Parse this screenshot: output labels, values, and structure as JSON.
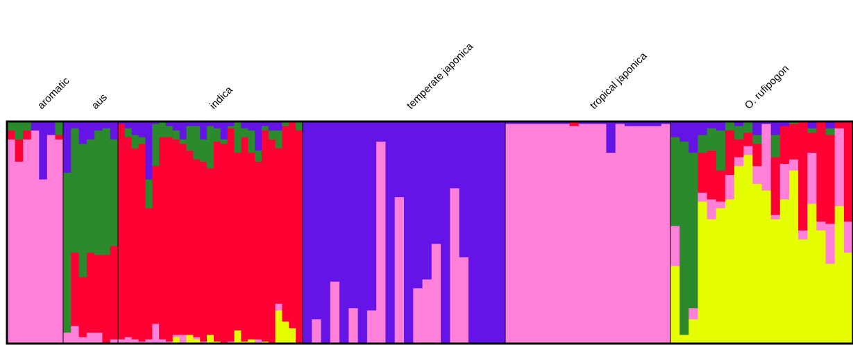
{
  "chart_data": {
    "type": "stacked-bar",
    "title": "",
    "xlabel": "",
    "ylabel": "",
    "ylim": [
      0,
      1
    ],
    "cluster_colors": {
      "K1": "#ff80d8",
      "K2": "#2b8a2b",
      "K3": "#ff0035",
      "K4": "#6414e6",
      "K5": "#e6ff00"
    },
    "stack_order": [
      "K5",
      "K1",
      "K3",
      "K2",
      "K4"
    ],
    "groups": [
      {
        "label": "aromatic",
        "individuals": [
          {
            "K1": 0.92,
            "K2": 0.04,
            "K3": 0.04,
            "K4": 0.0,
            "K5": 0.0
          },
          {
            "K1": 0.82,
            "K2": 0.08,
            "K3": 0.1,
            "K4": 0.0,
            "K5": 0.0
          },
          {
            "K1": 0.92,
            "K2": 0.04,
            "K3": 0.04,
            "K4": 0.0,
            "K5": 0.0
          },
          {
            "K1": 0.96,
            "K2": 0.0,
            "K3": 0.0,
            "K4": 0.04,
            "K5": 0.0
          },
          {
            "K1": 0.74,
            "K2": 0.0,
            "K3": 0.0,
            "K4": 0.26,
            "K5": 0.0
          },
          {
            "K1": 0.94,
            "K2": 0.0,
            "K3": 0.0,
            "K4": 0.06,
            "K5": 0.0
          },
          {
            "K1": 0.92,
            "K2": 0.06,
            "K3": 0.02,
            "K4": 0.0,
            "K5": 0.0
          }
        ]
      },
      {
        "label": "aus",
        "individuals": [
          {
            "K1": 0.05,
            "K2": 0.72,
            "K3": 0.0,
            "K4": 0.23,
            "K5": 0.0
          },
          {
            "K1": 0.08,
            "K2": 0.56,
            "K3": 0.33,
            "K4": 0.03,
            "K5": 0.0
          },
          {
            "K1": 0.03,
            "K2": 0.6,
            "K3": 0.27,
            "K4": 0.1,
            "K5": 0.0
          },
          {
            "K1": 0.05,
            "K2": 0.51,
            "K3": 0.36,
            "K4": 0.08,
            "K5": 0.0
          },
          {
            "K1": 0.05,
            "K2": 0.56,
            "K3": 0.35,
            "K4": 0.04,
            "K5": 0.0
          },
          {
            "K1": 0.0,
            "K2": 0.57,
            "K3": 0.4,
            "K4": 0.03,
            "K5": 0.0
          },
          {
            "K1": 0.02,
            "K2": 0.48,
            "K3": 0.42,
            "K4": 0.08,
            "K5": 0.0
          }
        ]
      },
      {
        "label": "indica",
        "individuals": [
          {
            "K1": 0.02,
            "K2": 0.0,
            "K3": 0.97,
            "K4": 0.01,
            "K5": 0.0
          },
          {
            "K1": 0.03,
            "K2": 0.04,
            "K3": 0.9,
            "K4": 0.03,
            "K5": 0.0
          },
          {
            "K1": 0.02,
            "K2": 0.06,
            "K3": 0.86,
            "K4": 0.06,
            "K5": 0.0
          },
          {
            "K1": 0.01,
            "K2": 0.03,
            "K3": 0.89,
            "K4": 0.07,
            "K5": 0.0
          },
          {
            "K1": 0.02,
            "K2": 0.13,
            "K3": 0.59,
            "K4": 0.26,
            "K5": 0.0
          },
          {
            "K1": 0.09,
            "K2": 0.19,
            "K3": 0.71,
            "K4": 0.01,
            "K5": 0.0
          },
          {
            "K1": 0.02,
            "K2": 0.07,
            "K3": 0.91,
            "K4": 0.0,
            "K5": 0.0
          },
          {
            "K1": 0.01,
            "K2": 0.05,
            "K3": 0.92,
            "K4": 0.02,
            "K5": 0.0
          },
          {
            "K1": 0.01,
            "K2": 0.04,
            "K3": 0.88,
            "K4": 0.04,
            "K5": 0.03
          },
          {
            "K1": 0.04,
            "K2": 0.02,
            "K3": 0.86,
            "K4": 0.08,
            "K5": 0.0
          },
          {
            "K1": 0.0,
            "K2": 0.11,
            "K3": 0.83,
            "K4": 0.02,
            "K5": 0.04
          },
          {
            "K1": 0.01,
            "K2": 0.15,
            "K3": 0.8,
            "K4": 0.02,
            "K5": 0.02
          },
          {
            "K1": 0.01,
            "K2": 0.1,
            "K3": 0.81,
            "K4": 0.08,
            "K5": 0.0
          },
          {
            "K1": 0.0,
            "K2": 0.19,
            "K3": 0.75,
            "K4": 0.02,
            "K5": 0.04
          },
          {
            "K1": 0.0,
            "K2": 0.06,
            "K3": 0.9,
            "K4": 0.03,
            "K5": 0.01
          },
          {
            "K1": 0.0,
            "K2": 0.02,
            "K3": 0.9,
            "K4": 0.08,
            "K5": 0.0
          },
          {
            "K1": 0.01,
            "K2": 0.01,
            "K3": 0.96,
            "K4": 0.02,
            "K5": 0.0
          },
          {
            "K1": 0.0,
            "K2": 0.14,
            "K3": 0.8,
            "K4": 0.0,
            "K5": 0.06
          },
          {
            "K1": 0.0,
            "K2": 0.04,
            "K3": 0.92,
            "K4": 0.03,
            "K5": 0.01
          },
          {
            "K1": 0.0,
            "K2": 0.1,
            "K3": 0.84,
            "K4": 0.04,
            "K5": 0.02
          },
          {
            "K1": 0.02,
            "K2": 0.05,
            "K3": 0.8,
            "K4": 0.13,
            "K5": 0.0
          },
          {
            "K1": 0.0,
            "K2": 0.02,
            "K3": 0.95,
            "K4": 0.02,
            "K5": 0.01
          },
          {
            "K1": 0.0,
            "K2": 0.04,
            "K3": 0.92,
            "K4": 0.04,
            "K5": 0.0
          },
          {
            "K1": 0.03,
            "K2": 0.08,
            "K3": 0.7,
            "K4": 0.04,
            "K5": 0.15
          },
          {
            "K1": 0.0,
            "K2": 0.02,
            "K3": 0.88,
            "K4": 0.0,
            "K5": 0.1
          },
          {
            "K1": 0.0,
            "K2": 0.0,
            "K3": 0.93,
            "K4": 0.0,
            "K5": 0.07
          },
          {
            "K1": 0.0,
            "K2": 0.04,
            "K3": 0.96,
            "K4": 0.0,
            "K5": 0.0
          }
        ]
      },
      {
        "label": "temperate japonica",
        "individuals": [
          {
            "K1": 0.0,
            "K2": 0.0,
            "K3": 0.0,
            "K4": 1.0,
            "K5": 0.0
          },
          {
            "K1": 0.11,
            "K2": 0.0,
            "K3": 0.0,
            "K4": 0.89,
            "K5": 0.0
          },
          {
            "K1": 0.0,
            "K2": 0.0,
            "K3": 0.0,
            "K4": 1.0,
            "K5": 0.0
          },
          {
            "K1": 0.28,
            "K2": 0.0,
            "K3": 0.0,
            "K4": 0.72,
            "K5": 0.0
          },
          {
            "K1": 0.0,
            "K2": 0.0,
            "K3": 0.0,
            "K4": 1.0,
            "K5": 0.0
          },
          {
            "K1": 0.16,
            "K2": 0.0,
            "K3": 0.0,
            "K4": 0.84,
            "K5": 0.0
          },
          {
            "K1": 0.0,
            "K2": 0.0,
            "K3": 0.0,
            "K4": 1.0,
            "K5": 0.0
          },
          {
            "K1": 0.15,
            "K2": 0.0,
            "K3": 0.0,
            "K4": 0.85,
            "K5": 0.0
          },
          {
            "K1": 0.91,
            "K2": 0.0,
            "K3": 0.0,
            "K4": 0.09,
            "K5": 0.0
          },
          {
            "K1": 0.0,
            "K2": 0.0,
            "K3": 0.0,
            "K4": 1.0,
            "K5": 0.0
          },
          {
            "K1": 0.66,
            "K2": 0.0,
            "K3": 0.0,
            "K4": 0.34,
            "K5": 0.0
          },
          {
            "K1": 0.0,
            "K2": 0.0,
            "K3": 0.0,
            "K4": 1.0,
            "K5": 0.0
          },
          {
            "K1": 0.25,
            "K2": 0.0,
            "K3": 0.0,
            "K4": 0.75,
            "K5": 0.0
          },
          {
            "K1": 0.29,
            "K2": 0.0,
            "K3": 0.0,
            "K4": 0.71,
            "K5": 0.0
          },
          {
            "K1": 0.45,
            "K2": 0.0,
            "K3": 0.0,
            "K4": 0.55,
            "K5": 0.0
          },
          {
            "K1": 0.0,
            "K2": 0.0,
            "K3": 0.0,
            "K4": 1.0,
            "K5": 0.0
          },
          {
            "K1": 0.7,
            "K2": 0.0,
            "K3": 0.0,
            "K4": 0.3,
            "K5": 0.0
          },
          {
            "K1": 0.39,
            "K2": 0.0,
            "K3": 0.0,
            "K4": 0.61,
            "K5": 0.0
          },
          {
            "K1": 0.0,
            "K2": 0.0,
            "K3": 0.0,
            "K4": 1.0,
            "K5": 0.0
          },
          {
            "K1": 0.0,
            "K2": 0.0,
            "K3": 0.0,
            "K4": 1.0,
            "K5": 0.0
          },
          {
            "K1": 0.0,
            "K2": 0.0,
            "K3": 0.0,
            "K4": 1.0,
            "K5": 0.0
          },
          {
            "K1": 0.0,
            "K2": 0.0,
            "K3": 0.0,
            "K4": 1.0,
            "K5": 0.0
          }
        ]
      },
      {
        "label": "tropical japonica",
        "individuals": [
          {
            "K1": 0.99,
            "K2": 0.0,
            "K3": 0.0,
            "K4": 0.01,
            "K5": 0.0
          },
          {
            "K1": 0.99,
            "K2": 0.0,
            "K3": 0.0,
            "K4": 0.01,
            "K5": 0.0
          },
          {
            "K1": 0.99,
            "K2": 0.0,
            "K3": 0.0,
            "K4": 0.01,
            "K5": 0.0
          },
          {
            "K1": 0.99,
            "K2": 0.0,
            "K3": 0.0,
            "K4": 0.01,
            "K5": 0.0
          },
          {
            "K1": 0.99,
            "K2": 0.0,
            "K3": 0.0,
            "K4": 0.01,
            "K5": 0.0
          },
          {
            "K1": 0.99,
            "K2": 0.0,
            "K3": 0.0,
            "K4": 0.01,
            "K5": 0.0
          },
          {
            "K1": 0.99,
            "K2": 0.0,
            "K3": 0.0,
            "K4": 0.01,
            "K5": 0.0
          },
          {
            "K1": 0.98,
            "K2": 0.0,
            "K3": 0.02,
            "K4": 0.0,
            "K5": 0.0
          },
          {
            "K1": 0.99,
            "K2": 0.0,
            "K3": 0.0,
            "K4": 0.01,
            "K5": 0.0
          },
          {
            "K1": 0.99,
            "K2": 0.0,
            "K3": 0.0,
            "K4": 0.01,
            "K5": 0.0
          },
          {
            "K1": 0.99,
            "K2": 0.0,
            "K3": 0.0,
            "K4": 0.01,
            "K5": 0.0
          },
          {
            "K1": 0.86,
            "K2": 0.0,
            "K3": 0.0,
            "K4": 0.14,
            "K5": 0.0
          },
          {
            "K1": 0.99,
            "K2": 0.0,
            "K3": 0.0,
            "K4": 0.01,
            "K5": 0.0
          },
          {
            "K1": 0.98,
            "K2": 0.0,
            "K3": 0.0,
            "K4": 0.02,
            "K5": 0.0
          },
          {
            "K1": 0.98,
            "K2": 0.0,
            "K3": 0.0,
            "K4": 0.02,
            "K5": 0.0
          },
          {
            "K1": 0.98,
            "K2": 0.0,
            "K3": 0.0,
            "K4": 0.02,
            "K5": 0.0
          },
          {
            "K1": 0.98,
            "K2": 0.0,
            "K3": 0.0,
            "K4": 0.02,
            "K5": 0.0
          },
          {
            "K1": 0.99,
            "K2": 0.0,
            "K3": 0.0,
            "K4": 0.01,
            "K5": 0.0
          }
        ]
      },
      {
        "label": "O. rufipogon",
        "individuals": [
          {
            "K1": 0.18,
            "K2": 0.4,
            "K3": 0.0,
            "K4": 0.07,
            "K5": 0.35
          },
          {
            "K1": 0.0,
            "K2": 0.87,
            "K3": 0.0,
            "K4": 0.09,
            "K5": 0.04
          },
          {
            "K1": 0.05,
            "K2": 0.7,
            "K3": 0.0,
            "K4": 0.14,
            "K5": 0.11
          },
          {
            "K1": 0.04,
            "K2": 0.08,
            "K3": 0.18,
            "K4": 0.06,
            "K5": 0.64
          },
          {
            "K1": 0.09,
            "K2": 0.1,
            "K3": 0.22,
            "K4": 0.03,
            "K5": 0.56
          },
          {
            "K1": 0.03,
            "K2": 0.18,
            "K3": 0.14,
            "K4": 0.04,
            "K5": 0.61
          },
          {
            "K1": 0.11,
            "K2": 0.04,
            "K3": 0.2,
            "K4": 0.0,
            "K5": 0.65
          },
          {
            "K1": 0.04,
            "K2": 0.06,
            "K3": 0.08,
            "K4": 0.02,
            "K5": 0.8
          },
          {
            "K1": 0.04,
            "K2": 0.05,
            "K3": 0.06,
            "K4": 0.0,
            "K5": 0.85
          },
          {
            "K1": 0.08,
            "K2": 0.04,
            "K3": 0.1,
            "K4": 0.06,
            "K5": 0.72
          },
          {
            "K1": 0.3,
            "K2": 0.0,
            "K3": 0.0,
            "K4": 0.01,
            "K5": 0.69
          },
          {
            "K1": 0.02,
            "K2": 0.1,
            "K3": 0.26,
            "K4": 0.06,
            "K5": 0.56
          },
          {
            "K1": 0.16,
            "K2": 0.0,
            "K3": 0.17,
            "K4": 0.02,
            "K5": 0.65
          },
          {
            "K1": 0.05,
            "K2": 0.01,
            "K3": 0.16,
            "K4": 0.0,
            "K5": 0.78
          },
          {
            "K1": 0.04,
            "K2": 0.0,
            "K3": 0.49,
            "K4": 0.0,
            "K5": 0.47
          },
          {
            "K1": 0.23,
            "K2": 0.02,
            "K3": 0.09,
            "K4": 0.03,
            "K5": 0.63
          },
          {
            "K1": 0.04,
            "K2": 0.0,
            "K3": 0.45,
            "K4": 0.0,
            "K5": 0.51
          },
          {
            "K1": 0.18,
            "K2": 0.03,
            "K3": 0.4,
            "K4": 0.03,
            "K5": 0.36
          },
          {
            "K1": 0.35,
            "K2": 0.0,
            "K3": 0.03,
            "K4": 0.0,
            "K5": 0.62
          },
          {
            "K1": 0.14,
            "K2": 0.0,
            "K3": 0.45,
            "K4": 0.0,
            "K5": 0.41
          }
        ]
      }
    ]
  }
}
